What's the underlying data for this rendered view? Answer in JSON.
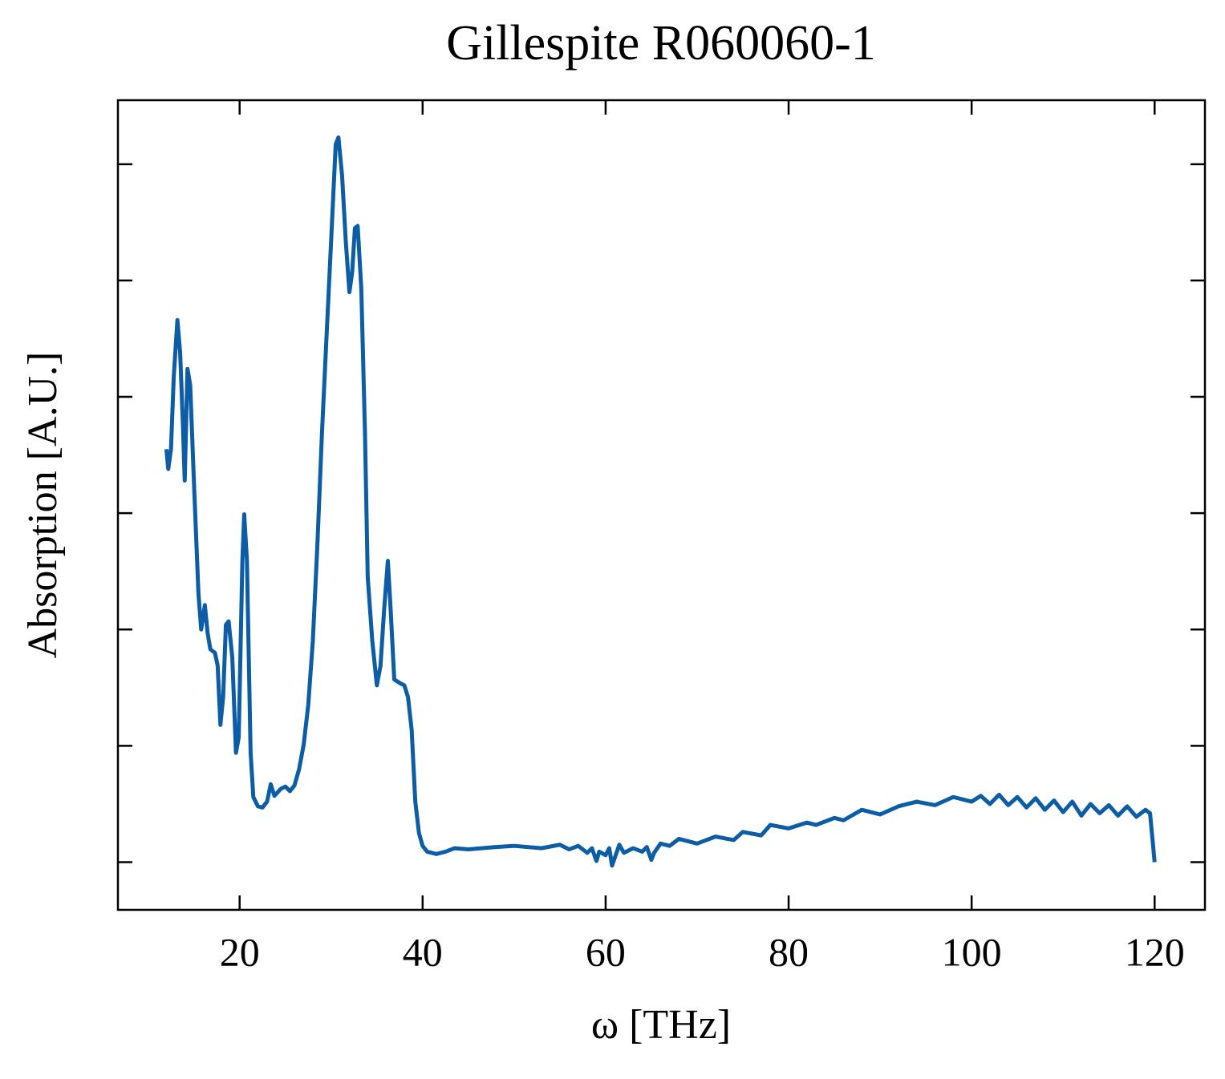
{
  "chart_data": {
    "type": "line",
    "title": "Gillespite R060060-1",
    "x_label": "ω [THz]",
    "y_label": "Absorption [A.U.]",
    "x": [
      12.0,
      12.2,
      12.5,
      12.8,
      13.2,
      13.5,
      13.8,
      14.0,
      14.3,
      14.6,
      15.0,
      15.5,
      15.8,
      16.2,
      16.5,
      16.8,
      17.3,
      17.6,
      17.9,
      18.2,
      18.5,
      18.8,
      19.2,
      19.6,
      19.9,
      20.3,
      20.5,
      20.8,
      21.2,
      21.5,
      22.0,
      22.5,
      23.0,
      23.4,
      23.8,
      24.5,
      25.0,
      25.5,
      26.0,
      26.5,
      27.0,
      27.5,
      28.0,
      28.5,
      29.0,
      29.5,
      30.0,
      30.5,
      30.8,
      31.2,
      31.6,
      32.0,
      32.3,
      32.6,
      32.9,
      33.3,
      33.7,
      34.0,
      34.5,
      35.0,
      35.4,
      35.8,
      36.2,
      36.5,
      36.9,
      37.5,
      38.0,
      38.4,
      38.8,
      39.2,
      39.6,
      40.0,
      40.5,
      41.5,
      42.5,
      43.5,
      45,
      48,
      50,
      53,
      55,
      56,
      57,
      58,
      58.5,
      59,
      59.3,
      60,
      60.4,
      60.7,
      61.5,
      62,
      63,
      64,
      64.5,
      65,
      65.3,
      66,
      67,
      68,
      70,
      72,
      74,
      75,
      77,
      78,
      80,
      82,
      83,
      85,
      86,
      88,
      90,
      92,
      94,
      96,
      98,
      100,
      101,
      102,
      103,
      104,
      105,
      106,
      107,
      108,
      109,
      110,
      111,
      112,
      113,
      114,
      115,
      116,
      117,
      118,
      119,
      119.5,
      120
    ],
    "series": [
      {
        "name": "Gillespite R060060-1",
        "color": "#0c5da5",
        "values": [
          3.55,
          3.38,
          3.55,
          4.17,
          4.66,
          4.38,
          3.76,
          3.28,
          4.24,
          4.1,
          3.28,
          2.31,
          2.0,
          2.21,
          1.97,
          1.83,
          1.8,
          1.69,
          1.18,
          1.42,
          2.04,
          2.07,
          1.76,
          0.94,
          1.07,
          2.59,
          2.99,
          2.59,
          0.94,
          0.56,
          0.48,
          0.47,
          0.52,
          0.67,
          0.57,
          0.63,
          0.65,
          0.61,
          0.66,
          0.8,
          1.01,
          1.35,
          1.9,
          2.73,
          3.69,
          4.52,
          5.34,
          6.17,
          6.23,
          5.9,
          5.34,
          4.9,
          5.07,
          5.45,
          5.47,
          4.93,
          3.69,
          2.45,
          1.9,
          1.52,
          1.69,
          2.18,
          2.59,
          2.18,
          1.57,
          1.54,
          1.52,
          1.42,
          1.14,
          0.52,
          0.25,
          0.14,
          0.09,
          0.07,
          0.09,
          0.12,
          0.11,
          0.13,
          0.14,
          0.12,
          0.15,
          0.11,
          0.14,
          0.08,
          0.12,
          0.01,
          0.09,
          0.06,
          0.12,
          -0.03,
          0.15,
          0.08,
          0.12,
          0.09,
          0.13,
          0.02,
          0.08,
          0.16,
          0.14,
          0.2,
          0.16,
          0.22,
          0.19,
          0.26,
          0.23,
          0.32,
          0.29,
          0.34,
          0.32,
          0.38,
          0.36,
          0.45,
          0.41,
          0.48,
          0.52,
          0.49,
          0.56,
          0.52,
          0.57,
          0.5,
          0.58,
          0.49,
          0.56,
          0.47,
          0.55,
          0.45,
          0.53,
          0.43,
          0.52,
          0.4,
          0.5,
          0.42,
          0.49,
          0.4,
          0.48,
          0.39,
          0.45,
          0.42,
          0.0
        ]
      }
    ],
    "xlim": [
      6.7,
      125.5
    ],
    "xticks": [
      20,
      40,
      60,
      80,
      100,
      120
    ],
    "ylim": [
      -0.41,
      6.55
    ],
    "yticks": [
      0,
      1,
      2,
      3,
      4,
      5,
      6
    ]
  }
}
